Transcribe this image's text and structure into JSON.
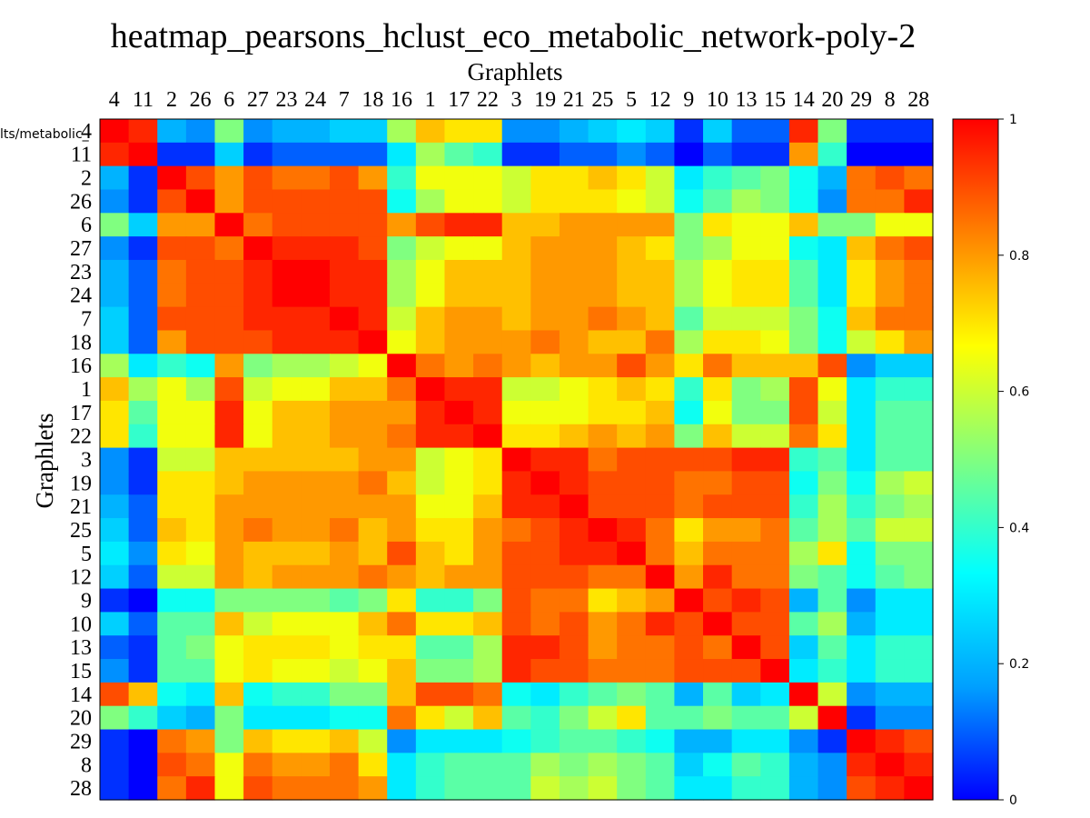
{
  "chart_data": {
    "type": "heatmap",
    "title": "heatmap_pearsons_hclust_eco_metabolic_network-poly-2",
    "xlabel": "Graphlets",
    "ylabel": "Graphlets",
    "row_labels": [
      "4",
      "11",
      "2",
      "26",
      "6",
      "27",
      "23",
      "24",
      "7",
      "18",
      "16",
      "1",
      "17",
      "22",
      "3",
      "19",
      "21",
      "25",
      "5",
      "12",
      "9",
      "10",
      "13",
      "15",
      "14",
      "20",
      "29",
      "8",
      "28"
    ],
    "col_labels": [
      "4",
      "11",
      "2",
      "26",
      "6",
      "27",
      "23",
      "24",
      "7",
      "18",
      "16",
      "1",
      "17",
      "22",
      "3",
      "19",
      "21",
      "25",
      "5",
      "12",
      "9",
      "10",
      "13",
      "15",
      "14",
      "20",
      "29",
      "8",
      "28"
    ],
    "colorbar": {
      "min": 0,
      "max": 1,
      "ticks": [
        "0",
        "0.2",
        "0.4",
        "0.6",
        "0.8",
        "1"
      ]
    },
    "colormap": [
      "#0000ff",
      "#00a0ff",
      "#00ffff",
      "#80ff80",
      "#ffff00",
      "#ff8000",
      "#ff0000"
    ],
    "grid": false,
    "values": [
      [
        1.0,
        0.95,
        0.2,
        0.15,
        0.5,
        0.15,
        0.2,
        0.2,
        0.25,
        0.25,
        0.55,
        0.75,
        0.7,
        0.7,
        0.15,
        0.15,
        0.2,
        0.25,
        0.3,
        0.25,
        0.05,
        0.25,
        0.1,
        0.1,
        0.95,
        0.5,
        0.05,
        0.05,
        0.05
      ],
      [
        0.95,
        1.0,
        0.05,
        0.05,
        0.25,
        0.05,
        0.1,
        0.1,
        0.1,
        0.1,
        0.3,
        0.55,
        0.45,
        0.4,
        0.05,
        0.05,
        0.1,
        0.1,
        0.15,
        0.1,
        0.0,
        0.1,
        0.05,
        0.05,
        0.8,
        0.4,
        0.0,
        0.0,
        0.0
      ],
      [
        0.2,
        0.05,
        1.0,
        0.9,
        0.8,
        0.9,
        0.85,
        0.85,
        0.9,
        0.8,
        0.4,
        0.65,
        0.65,
        0.65,
        0.6,
        0.7,
        0.7,
        0.75,
        0.7,
        0.6,
        0.3,
        0.4,
        0.45,
        0.5,
        0.35,
        0.2,
        0.85,
        0.9,
        0.85
      ],
      [
        0.15,
        0.05,
        0.9,
        1.0,
        0.8,
        0.9,
        0.9,
        0.9,
        0.9,
        0.9,
        0.35,
        0.55,
        0.65,
        0.65,
        0.6,
        0.7,
        0.7,
        0.7,
        0.65,
        0.6,
        0.35,
        0.45,
        0.55,
        0.5,
        0.35,
        0.15,
        0.85,
        0.85,
        0.95
      ],
      [
        0.5,
        0.25,
        0.8,
        0.8,
        1.0,
        0.85,
        0.9,
        0.9,
        0.9,
        0.9,
        0.8,
        0.9,
        0.95,
        0.95,
        0.75,
        0.75,
        0.8,
        0.8,
        0.8,
        0.8,
        0.5,
        0.7,
        0.65,
        0.65,
        0.75,
        0.5,
        0.5,
        0.65,
        0.65
      ],
      [
        0.15,
        0.05,
        0.9,
        0.9,
        0.85,
        1.0,
        0.95,
        0.95,
        0.95,
        0.9,
        0.5,
        0.6,
        0.65,
        0.65,
        0.75,
        0.8,
        0.8,
        0.8,
        0.75,
        0.7,
        0.5,
        0.55,
        0.65,
        0.65,
        0.35,
        0.3,
        0.75,
        0.85,
        0.9
      ],
      [
        0.2,
        0.1,
        0.85,
        0.9,
        0.9,
        0.95,
        1.0,
        1.0,
        0.95,
        0.95,
        0.55,
        0.65,
        0.75,
        0.75,
        0.75,
        0.8,
        0.8,
        0.8,
        0.75,
        0.75,
        0.55,
        0.65,
        0.7,
        0.7,
        0.45,
        0.3,
        0.7,
        0.8,
        0.85
      ],
      [
        0.2,
        0.1,
        0.85,
        0.9,
        0.9,
        0.95,
        1.0,
        1.0,
        0.95,
        0.95,
        0.55,
        0.65,
        0.75,
        0.75,
        0.75,
        0.8,
        0.8,
        0.8,
        0.75,
        0.75,
        0.55,
        0.65,
        0.7,
        0.7,
        0.45,
        0.3,
        0.7,
        0.8,
        0.85
      ],
      [
        0.25,
        0.1,
        0.9,
        0.9,
        0.9,
        0.95,
        0.95,
        0.95,
        1.0,
        0.95,
        0.6,
        0.75,
        0.8,
        0.8,
        0.75,
        0.8,
        0.8,
        0.85,
        0.8,
        0.75,
        0.45,
        0.6,
        0.6,
        0.6,
        0.5,
        0.35,
        0.75,
        0.85,
        0.85
      ],
      [
        0.25,
        0.1,
        0.8,
        0.9,
        0.9,
        0.9,
        0.95,
        0.95,
        0.95,
        1.0,
        0.65,
        0.75,
        0.8,
        0.8,
        0.8,
        0.85,
        0.8,
        0.75,
        0.75,
        0.85,
        0.55,
        0.7,
        0.7,
        0.65,
        0.5,
        0.35,
        0.6,
        0.7,
        0.8
      ],
      [
        0.55,
        0.3,
        0.4,
        0.35,
        0.8,
        0.5,
        0.55,
        0.55,
        0.6,
        0.65,
        1.0,
        0.85,
        0.8,
        0.85,
        0.8,
        0.75,
        0.8,
        0.8,
        0.9,
        0.8,
        0.7,
        0.85,
        0.75,
        0.75,
        0.75,
        0.9,
        0.15,
        0.25,
        0.25
      ],
      [
        0.75,
        0.55,
        0.65,
        0.55,
        0.9,
        0.6,
        0.65,
        0.65,
        0.75,
        0.75,
        0.85,
        1.0,
        0.95,
        0.95,
        0.6,
        0.6,
        0.65,
        0.7,
        0.75,
        0.7,
        0.4,
        0.7,
        0.5,
        0.55,
        0.9,
        0.65,
        0.3,
        0.4,
        0.4
      ],
      [
        0.7,
        0.45,
        0.65,
        0.65,
        0.95,
        0.65,
        0.75,
        0.75,
        0.8,
        0.8,
        0.8,
        0.95,
        1.0,
        0.95,
        0.65,
        0.65,
        0.65,
        0.7,
        0.7,
        0.75,
        0.35,
        0.65,
        0.5,
        0.5,
        0.9,
        0.6,
        0.3,
        0.45,
        0.45
      ],
      [
        0.7,
        0.4,
        0.65,
        0.65,
        0.95,
        0.65,
        0.75,
        0.75,
        0.8,
        0.8,
        0.85,
        0.95,
        0.95,
        1.0,
        0.7,
        0.7,
        0.75,
        0.8,
        0.75,
        0.8,
        0.5,
        0.75,
        0.6,
        0.6,
        0.85,
        0.7,
        0.3,
        0.45,
        0.45
      ],
      [
        0.15,
        0.05,
        0.6,
        0.6,
        0.75,
        0.75,
        0.75,
        0.75,
        0.75,
        0.8,
        0.8,
        0.6,
        0.65,
        0.7,
        1.0,
        0.95,
        0.95,
        0.85,
        0.9,
        0.9,
        0.9,
        0.9,
        0.95,
        0.95,
        0.4,
        0.45,
        0.3,
        0.45,
        0.45
      ],
      [
        0.15,
        0.05,
        0.7,
        0.7,
        0.75,
        0.8,
        0.8,
        0.8,
        0.8,
        0.85,
        0.75,
        0.6,
        0.65,
        0.7,
        0.95,
        1.0,
        0.95,
        0.9,
        0.9,
        0.9,
        0.85,
        0.85,
        0.9,
        0.9,
        0.35,
        0.5,
        0.35,
        0.55,
        0.6
      ],
      [
        0.2,
        0.1,
        0.7,
        0.7,
        0.8,
        0.8,
        0.8,
        0.8,
        0.8,
        0.8,
        0.8,
        0.65,
        0.65,
        0.75,
        0.95,
        0.95,
        1.0,
        0.9,
        0.9,
        0.9,
        0.85,
        0.9,
        0.9,
        0.9,
        0.4,
        0.55,
        0.4,
        0.5,
        0.55
      ],
      [
        0.25,
        0.1,
        0.75,
        0.7,
        0.8,
        0.85,
        0.8,
        0.8,
        0.85,
        0.75,
        0.8,
        0.7,
        0.7,
        0.8,
        0.85,
        0.9,
        0.95,
        1.0,
        0.95,
        0.85,
        0.7,
        0.8,
        0.8,
        0.85,
        0.45,
        0.55,
        0.45,
        0.6,
        0.6
      ],
      [
        0.3,
        0.15,
        0.7,
        0.65,
        0.8,
        0.75,
        0.75,
        0.75,
        0.8,
        0.75,
        0.9,
        0.75,
        0.7,
        0.8,
        0.9,
        0.9,
        0.95,
        0.95,
        1.0,
        0.85,
        0.75,
        0.85,
        0.85,
        0.85,
        0.55,
        0.7,
        0.35,
        0.5,
        0.5
      ],
      [
        0.25,
        0.1,
        0.6,
        0.6,
        0.8,
        0.75,
        0.8,
        0.8,
        0.8,
        0.85,
        0.8,
        0.75,
        0.8,
        0.8,
        0.9,
        0.9,
        0.9,
        0.85,
        0.85,
        1.0,
        0.8,
        0.95,
        0.85,
        0.85,
        0.5,
        0.45,
        0.35,
        0.45,
        0.5
      ],
      [
        0.05,
        0.0,
        0.35,
        0.35,
        0.5,
        0.5,
        0.5,
        0.5,
        0.45,
        0.5,
        0.7,
        0.4,
        0.4,
        0.5,
        0.9,
        0.85,
        0.85,
        0.7,
        0.75,
        0.8,
        1.0,
        0.9,
        0.95,
        0.9,
        0.2,
        0.45,
        0.15,
        0.3,
        0.3
      ],
      [
        0.25,
        0.1,
        0.45,
        0.45,
        0.75,
        0.6,
        0.65,
        0.65,
        0.65,
        0.75,
        0.85,
        0.7,
        0.7,
        0.75,
        0.9,
        0.85,
        0.9,
        0.8,
        0.85,
        0.95,
        0.9,
        1.0,
        0.9,
        0.9,
        0.45,
        0.55,
        0.2,
        0.3,
        0.3
      ],
      [
        0.1,
        0.05,
        0.45,
        0.5,
        0.65,
        0.7,
        0.7,
        0.7,
        0.65,
        0.7,
        0.7,
        0.45,
        0.45,
        0.55,
        0.95,
        0.95,
        0.9,
        0.8,
        0.85,
        0.85,
        0.9,
        0.85,
        1.0,
        0.9,
        0.25,
        0.45,
        0.3,
        0.4,
        0.4
      ],
      [
        0.15,
        0.05,
        0.45,
        0.45,
        0.65,
        0.7,
        0.65,
        0.65,
        0.6,
        0.65,
        0.75,
        0.5,
        0.5,
        0.55,
        0.95,
        0.9,
        0.9,
        0.85,
        0.85,
        0.85,
        0.9,
        0.9,
        0.9,
        1.0,
        0.3,
        0.4,
        0.3,
        0.4,
        0.4
      ],
      [
        0.9,
        0.75,
        0.35,
        0.3,
        0.75,
        0.35,
        0.4,
        0.4,
        0.5,
        0.5,
        0.75,
        0.9,
        0.9,
        0.85,
        0.35,
        0.3,
        0.4,
        0.45,
        0.5,
        0.45,
        0.2,
        0.45,
        0.25,
        0.3,
        1.0,
        0.6,
        0.15,
        0.2,
        0.2
      ],
      [
        0.5,
        0.4,
        0.25,
        0.2,
        0.5,
        0.3,
        0.3,
        0.3,
        0.35,
        0.35,
        0.85,
        0.7,
        0.6,
        0.75,
        0.45,
        0.4,
        0.5,
        0.6,
        0.7,
        0.45,
        0.45,
        0.5,
        0.45,
        0.45,
        0.6,
        1.0,
        0.05,
        0.15,
        0.15
      ],
      [
        0.05,
        0.0,
        0.85,
        0.8,
        0.5,
        0.75,
        0.7,
        0.7,
        0.75,
        0.6,
        0.15,
        0.3,
        0.3,
        0.3,
        0.35,
        0.4,
        0.45,
        0.45,
        0.4,
        0.35,
        0.2,
        0.2,
        0.3,
        0.3,
        0.15,
        0.05,
        1.0,
        0.95,
        0.9
      ],
      [
        0.05,
        0.0,
        0.9,
        0.85,
        0.65,
        0.85,
        0.8,
        0.8,
        0.85,
        0.7,
        0.3,
        0.4,
        0.45,
        0.45,
        0.45,
        0.55,
        0.5,
        0.55,
        0.5,
        0.45,
        0.25,
        0.35,
        0.45,
        0.4,
        0.2,
        0.15,
        0.95,
        1.0,
        0.95
      ],
      [
        0.05,
        0.0,
        0.85,
        0.95,
        0.65,
        0.9,
        0.85,
        0.85,
        0.85,
        0.8,
        0.3,
        0.4,
        0.45,
        0.45,
        0.45,
        0.6,
        0.55,
        0.6,
        0.5,
        0.45,
        0.3,
        0.3,
        0.4,
        0.4,
        0.2,
        0.15,
        0.9,
        0.95,
        1.0
      ]
    ]
  },
  "stray_label": "lts/metabolic_"
}
